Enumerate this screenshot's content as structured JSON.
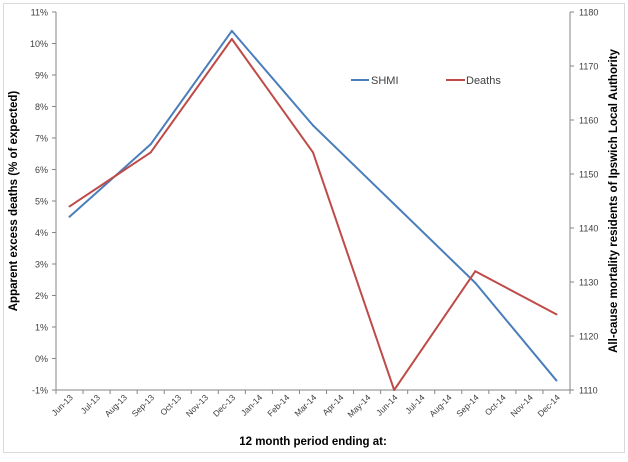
{
  "chart_data": {
    "type": "line",
    "categories": [
      "Jun-13",
      "Jul-13",
      "Aug-13",
      "Sep-13",
      "Oct-13",
      "Nov-13",
      "Dec-13",
      "Jan-14",
      "Feb-14",
      "Mar-14",
      "Apr-14",
      "May-14",
      "Jun-14",
      "Jul-14",
      "Aug-14",
      "Sep-14",
      "Oct-14",
      "Nov-14",
      "Dec-14"
    ],
    "xlabel": "12 month period ending at:",
    "ylabel": "Apparent excess deaths (% of expected)",
    "y2label": "All-cause mortality residents of Ipswich Local Authority",
    "ylim": [
      -1,
      11
    ],
    "y2lim": [
      1110,
      1180
    ],
    "yticks": [
      "-1%",
      "0%",
      "1%",
      "2%",
      "3%",
      "4%",
      "5%",
      "6%",
      "7%",
      "8%",
      "9%",
      "10%",
      "11%"
    ],
    "y2ticks": [
      "1110",
      "1120",
      "1130",
      "1140",
      "1150",
      "1160",
      "1170",
      "1180"
    ],
    "legend_position": "top-right",
    "grid": false,
    "series": [
      {
        "name": "SHMI",
        "axis": "left",
        "color": "#4a7ebb",
        "x": [
          "Jun-13",
          "Sep-13",
          "Dec-13",
          "Mar-14",
          "Jun-14",
          "Sep-14",
          "Dec-14"
        ],
        "values": [
          4.5,
          6.8,
          10.4,
          7.4,
          4.9,
          2.4,
          -0.7
        ]
      },
      {
        "name": "Deaths",
        "axis": "right",
        "color": "#be4b48",
        "x": [
          "Jun-13",
          "Sep-13",
          "Dec-13",
          "Mar-14",
          "Jun-14",
          "Sep-14",
          "Dec-14"
        ],
        "values": [
          1144,
          1154,
          1175,
          1154,
          1110,
          1132,
          1124
        ]
      }
    ]
  }
}
